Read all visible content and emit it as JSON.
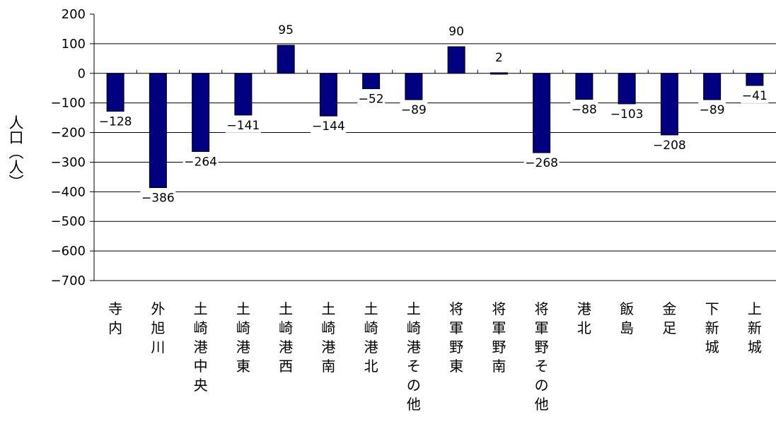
{
  "chart_data": {
    "type": "bar",
    "title": "",
    "xlabel": "",
    "ylabel": "人口（人）",
    "ylim": [
      -700,
      200
    ],
    "yticks": [
      200,
      100,
      0,
      -100,
      -200,
      -300,
      -400,
      -500,
      -600,
      -700
    ],
    "grid": true,
    "legend": "none",
    "bar_color": "#000080",
    "categories": [
      "寺内",
      "外旭川",
      "土崎港中央",
      "土崎港東",
      "土崎港西",
      "土崎港南",
      "土崎港北",
      "土崎港その他",
      "将軍野東",
      "将軍野南",
      "将軍野その他",
      "港北",
      "飯島",
      "金足",
      "下新城",
      "上新城"
    ],
    "values": [
      -128,
      -386,
      -264,
      -141,
      95,
      -144,
      -52,
      -89,
      90,
      2,
      -268,
      -88,
      -103,
      -208,
      -89,
      -41
    ],
    "data_labels": [
      "-128",
      "-386",
      "-264",
      "-141",
      "95",
      "-144",
      "-52",
      "-89",
      "90",
      "2",
      "-268",
      "-88",
      "-103",
      "-208",
      "-89",
      "-41"
    ]
  }
}
